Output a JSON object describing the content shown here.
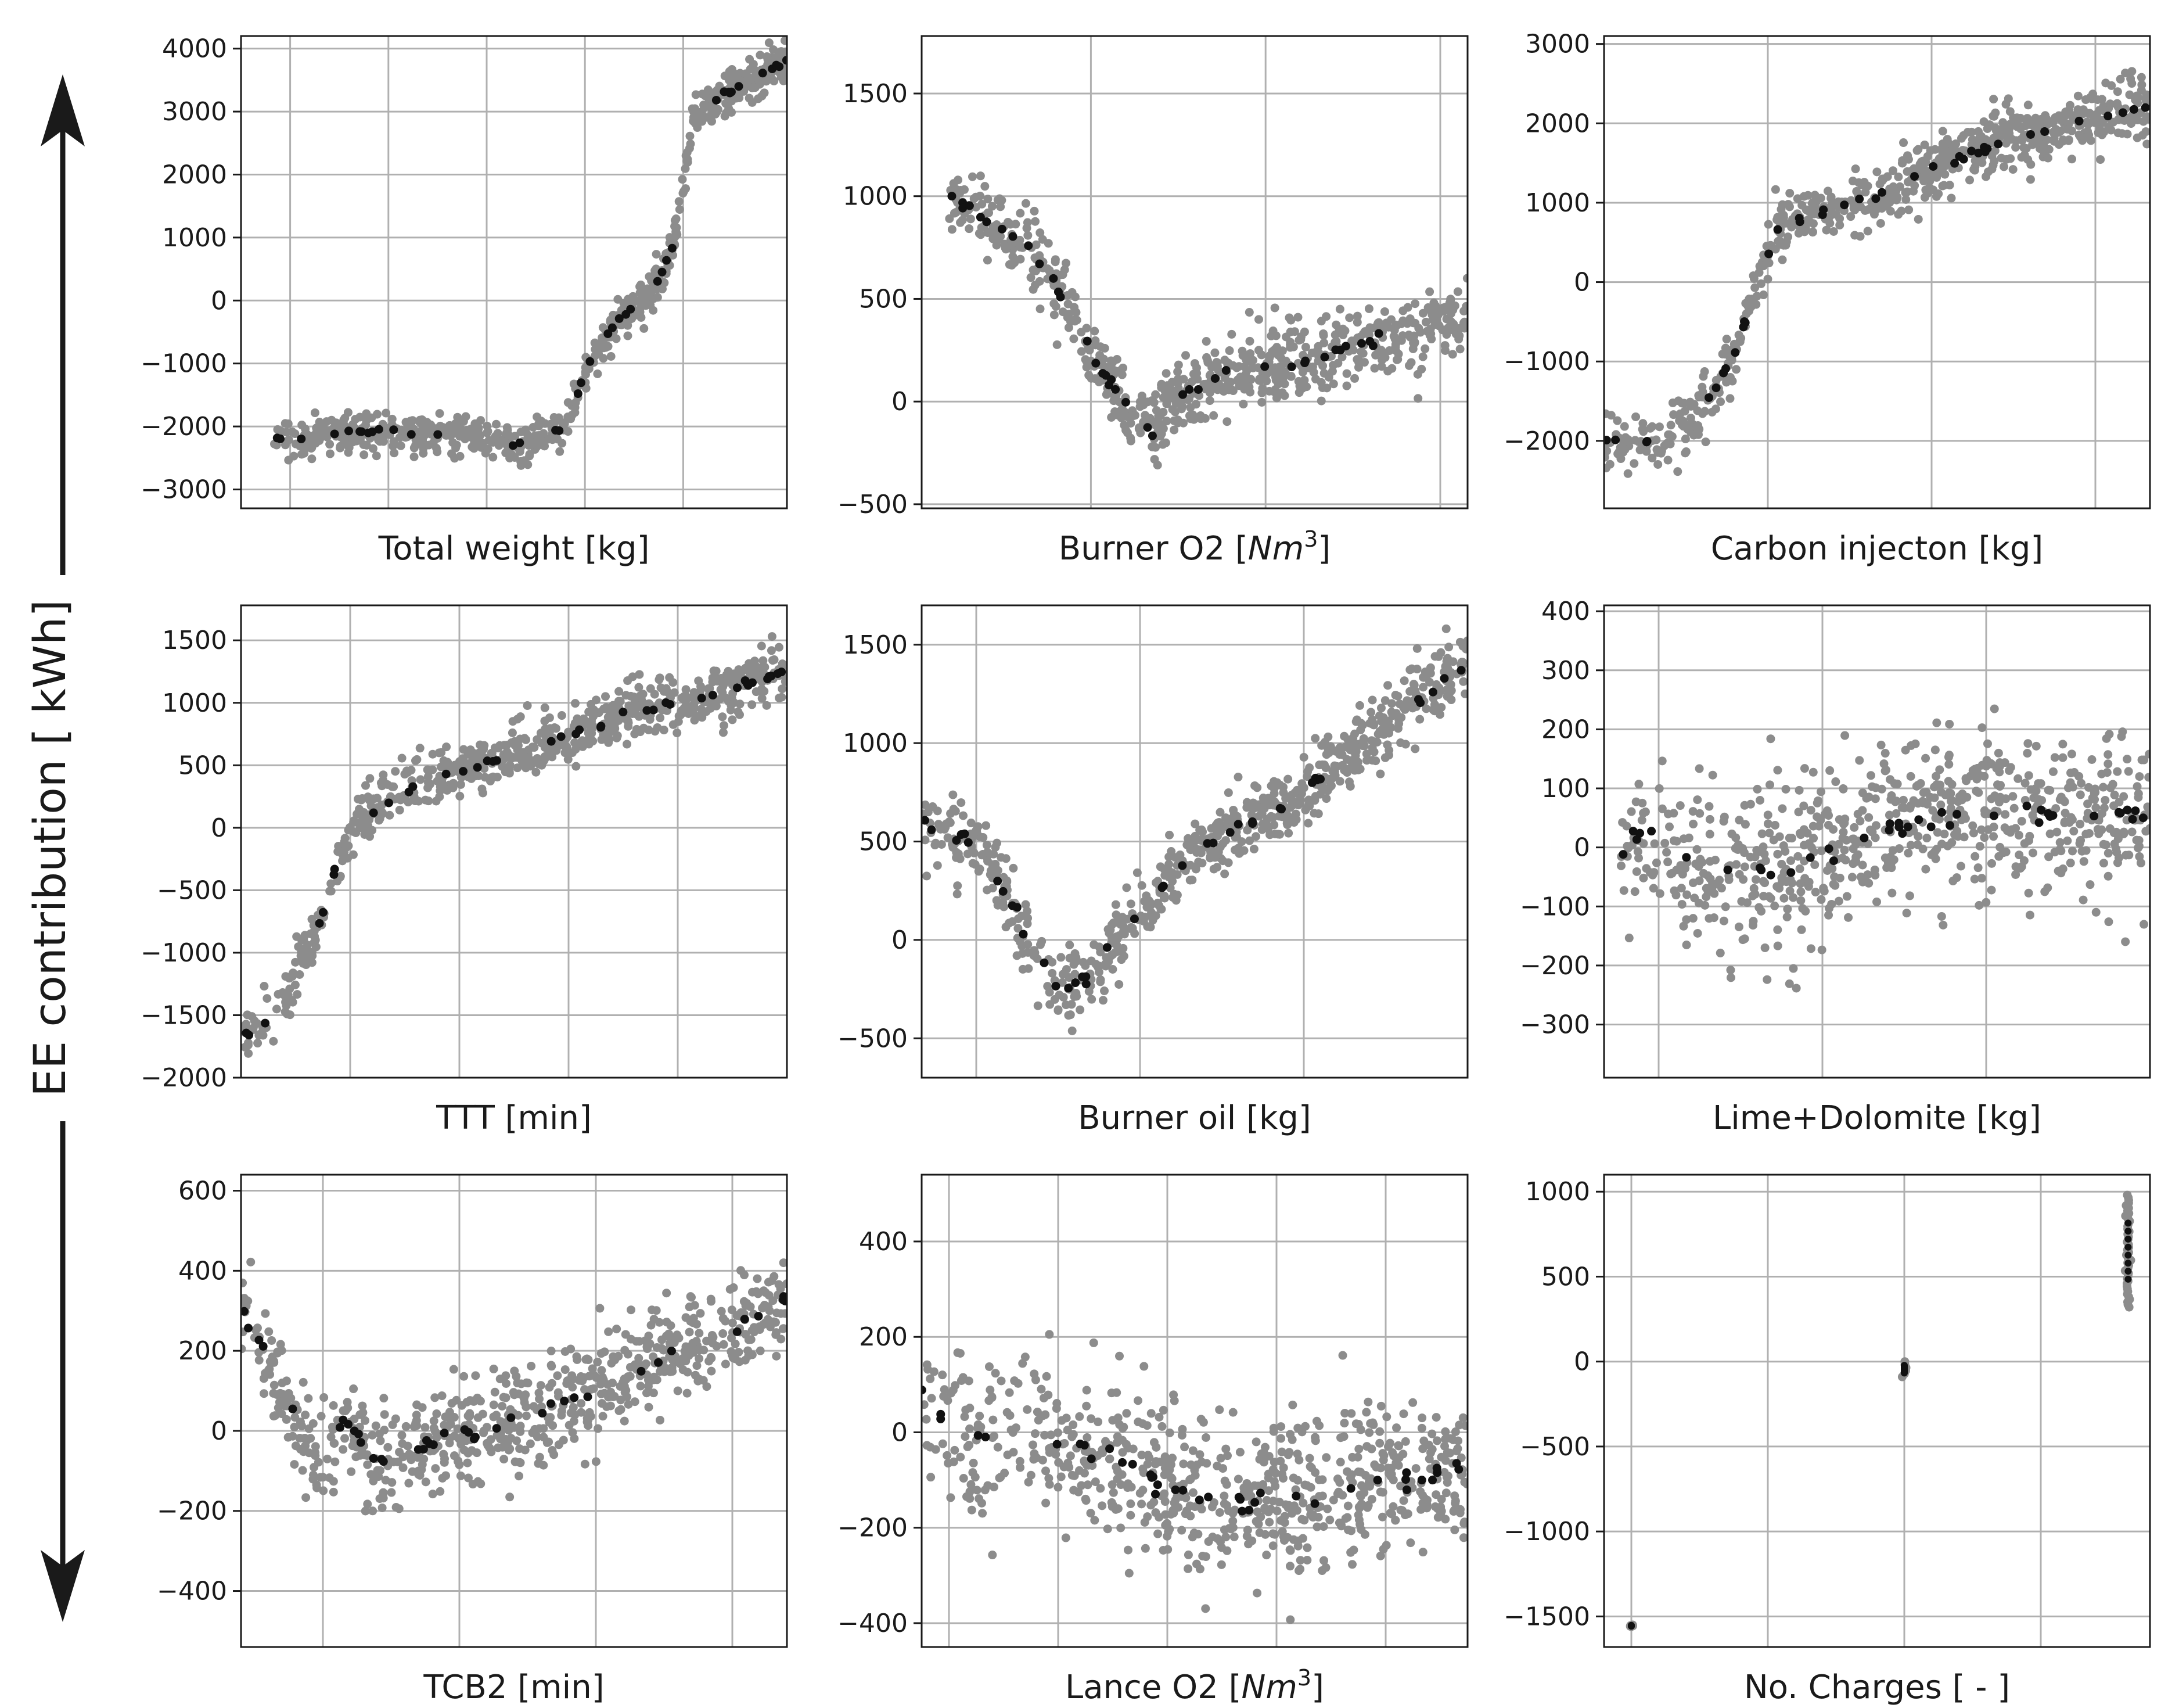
{
  "figure": {
    "y_title": "EE contribution [ kWh]",
    "point_color": "#8c8c8c",
    "mean_color": "#111111"
  },
  "chart_data": [
    {
      "type": "scatter",
      "xlabel_main": "Total weight [kg]",
      "xlabel_sup": "",
      "ylim": [
        -3300,
        4200
      ],
      "yticks": [
        -3000,
        -2000,
        -1000,
        0,
        1000,
        2000,
        3000,
        4000
      ],
      "xlim": [
        0,
        1
      ],
      "xgrid": [
        0.09,
        0.27,
        0.45,
        0.63,
        0.81
      ],
      "trend": [
        [
          0.06,
          -2200
        ],
        [
          0.27,
          -2050
        ],
        [
          0.52,
          -2300
        ],
        [
          0.59,
          -2000
        ],
        [
          0.64,
          -1000
        ],
        [
          0.69,
          -300
        ],
        [
          0.75,
          100
        ],
        [
          0.79,
          800
        ],
        [
          0.81,
          1800
        ],
        [
          0.83,
          2900
        ],
        [
          0.87,
          3200
        ],
        [
          1.0,
          3800
        ]
      ],
      "scatter_std": 160,
      "n_points": 700,
      "n_mean": 40
    },
    {
      "type": "scatter",
      "xlabel_main": "Burner O2 [",
      "xlabel_sup": "Nm",
      "ylim": [
        -520,
        1780
      ],
      "yticks": [
        -500,
        0,
        500,
        1000,
        1500
      ],
      "xlim": [
        0,
        1
      ],
      "xgrid": [
        0.31,
        0.63,
        0.95
      ],
      "trend": [
        [
          0.05,
          1000
        ],
        [
          0.2,
          750
        ],
        [
          0.26,
          500
        ],
        [
          0.32,
          200
        ],
        [
          0.38,
          -50
        ],
        [
          0.42,
          -150
        ],
        [
          0.46,
          0
        ],
        [
          0.52,
          100
        ],
        [
          0.6,
          150
        ],
        [
          0.7,
          200
        ],
        [
          0.85,
          300
        ],
        [
          1.0,
          400
        ]
      ],
      "scatter_std": 90,
      "n_points": 700,
      "n_mean": 40
    },
    {
      "type": "scatter",
      "xlabel_main": "Carbon injecton [kg]",
      "xlabel_sup": "",
      "ylim": [
        -2850,
        3100
      ],
      "yticks": [
        -2000,
        -1000,
        0,
        1000,
        2000,
        3000
      ],
      "xlim": [
        0,
        1
      ],
      "xgrid": [
        0.3,
        0.6,
        0.9
      ],
      "trend": [
        [
          0.0,
          -2000
        ],
        [
          0.1,
          -2000
        ],
        [
          0.18,
          -1600
        ],
        [
          0.24,
          -900
        ],
        [
          0.28,
          0
        ],
        [
          0.32,
          700
        ],
        [
          0.4,
          900
        ],
        [
          0.5,
          1100
        ],
        [
          0.6,
          1400
        ],
        [
          0.75,
          1800
        ],
        [
          1.0,
          2200
        ]
      ],
      "scatter_std": 190,
      "n_points": 700,
      "n_mean": 40
    },
    {
      "type": "scatter",
      "xlabel_main": "TTT [min]",
      "xlabel_sup": "",
      "ylim": [
        -2000,
        1780
      ],
      "yticks": [
        -2000,
        -1500,
        -1000,
        -500,
        0,
        500,
        1000,
        1500
      ],
      "xlim": [
        0,
        1
      ],
      "xgrid": [
        0.2,
        0.4,
        0.6,
        0.8
      ],
      "trend": [
        [
          0.0,
          -1700
        ],
        [
          0.08,
          -1400
        ],
        [
          0.14,
          -800
        ],
        [
          0.18,
          -200
        ],
        [
          0.22,
          100
        ],
        [
          0.3,
          300
        ],
        [
          0.4,
          450
        ],
        [
          0.55,
          650
        ],
        [
          0.7,
          900
        ],
        [
          0.85,
          1050
        ],
        [
          1.0,
          1250
        ]
      ],
      "scatter_std": 110,
      "n_points": 700,
      "n_mean": 40
    },
    {
      "type": "scatter",
      "xlabel_main": "Burner oil [kg]",
      "xlabel_sup": "",
      "ylim": [
        -700,
        1700
      ],
      "yticks": [
        -500,
        0,
        500,
        1000,
        1500
      ],
      "xlim": [
        0,
        1
      ],
      "xgrid": [
        0.1,
        0.4,
        0.7
      ],
      "trend": [
        [
          0.0,
          600
        ],
        [
          0.1,
          500
        ],
        [
          0.18,
          100
        ],
        [
          0.25,
          -250
        ],
        [
          0.3,
          -200
        ],
        [
          0.4,
          150
        ],
        [
          0.5,
          450
        ],
        [
          0.6,
          600
        ],
        [
          0.7,
          750
        ],
        [
          0.85,
          1100
        ],
        [
          1.0,
          1400
        ]
      ],
      "scatter_std": 90,
      "n_points": 700,
      "n_mean": 40
    },
    {
      "type": "scatter",
      "xlabel_main": "Lime+Dolomite [kg]",
      "xlabel_sup": "",
      "ylim": [
        -390,
        410
      ],
      "yticks": [
        -300,
        -200,
        -100,
        0,
        100,
        200,
        300,
        400
      ],
      "xlim": [
        0,
        1
      ],
      "xgrid": [
        0.1,
        0.4,
        0.7
      ],
      "trend": [
        [
          0.03,
          0
        ],
        [
          0.1,
          50
        ],
        [
          0.12,
          0
        ],
        [
          0.18,
          -50
        ],
        [
          0.35,
          -30
        ],
        [
          0.5,
          20
        ],
        [
          0.65,
          60
        ],
        [
          0.8,
          60
        ],
        [
          1.0,
          50
        ]
      ],
      "scatter_std": 70,
      "n_points": 700,
      "n_mean": 40
    },
    {
      "type": "scatter",
      "xlabel_main": "TCB2 [min]",
      "xlabel_sup": "",
      "ylim": [
        -540,
        640
      ],
      "yticks": [
        -400,
        -200,
        0,
        200,
        400,
        600
      ],
      "xlim": [
        0,
        1
      ],
      "xgrid": [
        0.15,
        0.4,
        0.65,
        0.9
      ],
      "trend": [
        [
          0.0,
          300
        ],
        [
          0.15,
          -100
        ],
        [
          0.19,
          40
        ],
        [
          0.25,
          -80
        ],
        [
          0.35,
          -30
        ],
        [
          0.5,
          20
        ],
        [
          0.65,
          100
        ],
        [
          0.8,
          200
        ],
        [
          1.0,
          320
        ]
      ],
      "scatter_std": 65,
      "n_points": 700,
      "n_mean": 40
    },
    {
      "type": "scatter",
      "xlabel_main": "Lance O2 [",
      "xlabel_sup": "Nm",
      "ylim": [
        -450,
        540
      ],
      "yticks": [
        -400,
        -200,
        0,
        200,
        400
      ],
      "xlim": [
        0,
        1
      ],
      "xgrid": [
        0.05,
        0.25,
        0.45,
        0.65,
        0.85
      ],
      "trend": [
        [
          0.0,
          100
        ],
        [
          0.05,
          0
        ],
        [
          0.15,
          -10
        ],
        [
          0.25,
          -20
        ],
        [
          0.35,
          -60
        ],
        [
          0.4,
          -90
        ],
        [
          0.55,
          -150
        ],
        [
          1.0,
          -80
        ]
      ],
      "scatter_std": 80,
      "n_points": 700,
      "n_mean": 40
    },
    {
      "type": "scatter",
      "xlabel_main": "No. Charges [ - ]",
      "xlabel_sup": "",
      "ylim": [
        -1680,
        1100
      ],
      "yticks": [
        -1500,
        -1000,
        -500,
        0,
        500,
        1000
      ],
      "xlim": [
        0,
        1
      ],
      "xgrid": [
        0.05,
        0.3,
        0.55,
        0.8
      ],
      "groups": [
        {
          "x": 0.05,
          "y": [
            -1560,
            -1550
          ]
        },
        {
          "x": 0.55,
          "y": [
            -90,
            0
          ]
        },
        {
          "x": 0.96,
          "y": [
            320,
            980
          ]
        }
      ]
    }
  ]
}
